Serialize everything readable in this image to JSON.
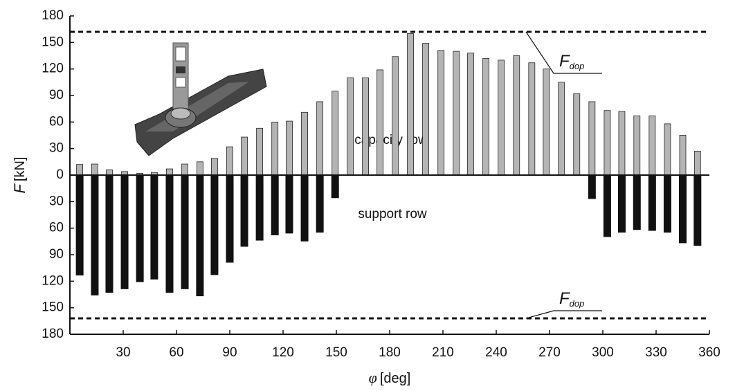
{
  "chart_data": {
    "type": "bar",
    "y_label_symbol": "F",
    "y_label_unit": "[kN]",
    "x_label_symbol": "φ",
    "x_label_unit": "[deg]",
    "x": [
      5.5,
      14,
      22.2,
      30.8,
      39.4,
      47.5,
      56.1,
      64.7,
      73.2,
      81.4,
      90,
      98.2,
      106.8,
      115.4,
      123.5,
      132.1,
      140.7,
      149.3,
      157.8,
      166.4,
      174.6,
      183.2,
      191.7,
      200.3,
      208.9,
      217.5,
      225.6,
      234.2,
      242.8,
      251.4,
      260,
      268.2,
      276.7,
      285.3,
      293.9,
      302.5,
      310.7,
      319.2,
      327.8,
      336.4,
      345,
      353.3
    ],
    "series": [
      {
        "name": "capacity row",
        "color": "#b4b4b4",
        "values": [
          12,
          12.5,
          6,
          4,
          2,
          3,
          7,
          12.5,
          15,
          19,
          32,
          43,
          53,
          60,
          61,
          71,
          83,
          95,
          110,
          110,
          119,
          134,
          160,
          149,
          141,
          140,
          138,
          132,
          130,
          135,
          127,
          120,
          105,
          92,
          83,
          73,
          72,
          67,
          67,
          58,
          45,
          27
        ]
      },
      {
        "name": "support row",
        "color": "#111111",
        "values": [
          -113.5,
          -136,
          -133,
          -129,
          -121,
          -118,
          -133,
          -129,
          -137,
          -113,
          -99,
          -81,
          -74,
          -68,
          -66,
          -75,
          -65,
          -26,
          null,
          null,
          null,
          null,
          null,
          null,
          null,
          null,
          null,
          null,
          null,
          null,
          null,
          null,
          null,
          null,
          -27,
          -70,
          -65,
          -62,
          -63,
          -65,
          -77,
          -80
        ]
      }
    ],
    "limits": [
      {
        "symbol": "F",
        "subscript": "dop",
        "value": 162
      },
      {
        "symbol": "F",
        "subscript": "dop",
        "value": -162
      }
    ],
    "xlim": [
      0,
      360
    ],
    "xticks": [
      30,
      60,
      90,
      120,
      150,
      180,
      210,
      240,
      270,
      300,
      330,
      360
    ],
    "ylim": [
      -180,
      180
    ],
    "yticks": [
      180,
      150,
      120,
      90,
      60,
      30,
      0,
      {
        "value": -30,
        "label": "30"
      },
      {
        "value": -60,
        "label": "60"
      },
      {
        "value": -90,
        "label": "90"
      },
      {
        "value": -120,
        "label": "120"
      },
      {
        "value": -150,
        "label": "150"
      },
      {
        "value": -180,
        "label": "180"
      }
    ]
  }
}
